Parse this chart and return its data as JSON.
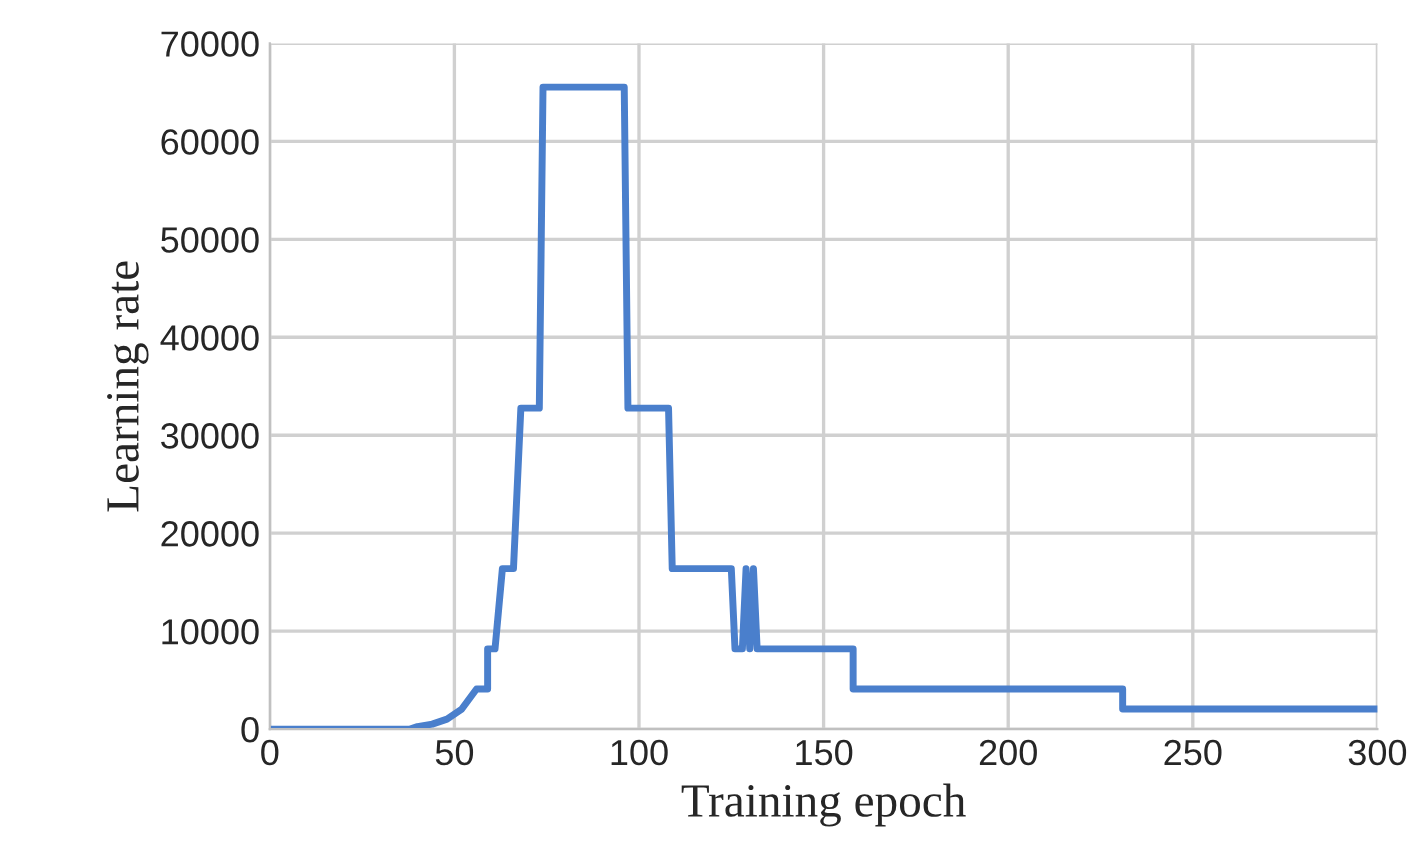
{
  "chart_data": {
    "type": "line",
    "xlabel": "Training epoch",
    "ylabel": "Learning rate",
    "x": [
      0,
      38,
      40,
      44,
      48,
      52,
      56,
      59,
      59,
      61,
      63,
      66,
      68,
      73,
      74,
      96,
      97,
      108,
      109,
      125,
      126,
      128,
      129,
      130,
      131,
      132,
      158,
      158,
      231,
      231,
      300
    ],
    "series": [
      {
        "color": "#4a7fcc",
        "values": [
          0,
          0,
          256,
          512,
          1024,
          2048,
          4096,
          4096,
          8192,
          8192,
          16384,
          16384,
          32768,
          32768,
          65536,
          65536,
          32768,
          32768,
          16384,
          16384,
          8192,
          8192,
          16384,
          8192,
          16384,
          8192,
          8192,
          4096,
          4096,
          2048,
          2048
        ]
      }
    ],
    "xlim": [
      0,
      300
    ],
    "xticks": [
      0,
      50,
      100,
      150,
      200,
      250,
      300
    ],
    "ylim": [
      0,
      70000
    ],
    "yticks": [
      0,
      10000,
      20000,
      30000,
      40000,
      50000,
      60000,
      70000
    ],
    "grid": true,
    "marker": "none",
    "line_style": "solid"
  }
}
